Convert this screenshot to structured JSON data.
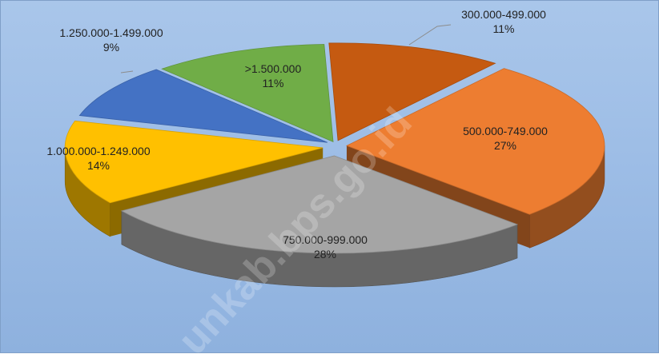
{
  "chart_data": {
    "type": "pie",
    "title": "",
    "slices": [
      {
        "label": "300.000-499.000",
        "percent_label": "11%",
        "value": 11,
        "color": "#c55a11"
      },
      {
        "label": "500.000-749.000",
        "percent_label": "27%",
        "value": 27,
        "color": "#ed7d31"
      },
      {
        "label": "750.000-999.000",
        "percent_label": "28%",
        "value": 28,
        "color": "#a5a5a5"
      },
      {
        "label": "1.000.000-1.249.000",
        "percent_label": "14%",
        "value": 14,
        "color": "#ffc000"
      },
      {
        "label": "1.250.000-1.499.000",
        "percent_label": "9%",
        "value": 9,
        "color": "#4472c4"
      },
      {
        "label": ">1.500.000",
        "percent_label": "11%",
        "value": 11,
        "color": "#70ad47"
      }
    ],
    "legend": "none",
    "style": "3d-exploded"
  },
  "colors": {
    "background": "#9dbde6"
  },
  "watermark": "unkab.bps.go.id"
}
